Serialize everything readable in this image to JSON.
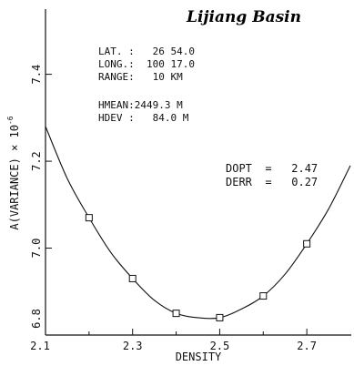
{
  "chart_data": {
    "type": "scatter",
    "title": "Lijiang Basin",
    "xlabel": "DENSITY",
    "ylabel": "A(VARIANCE) × 10",
    "ylabel_exponent": "-6",
    "xlim": [
      2.1,
      2.8
    ],
    "ylim": [
      6.8,
      7.55
    ],
    "x_ticks": [
      2.1,
      2.3,
      2.5,
      2.7
    ],
    "x_tick_labels": [
      "2.1",
      "2.3",
      "2.5",
      "2.7"
    ],
    "y_ticks": [
      6.8,
      7.0,
      7.2,
      7.4
    ],
    "y_tick_labels": [
      "6.8",
      "7.0",
      "7.2",
      "7.4"
    ],
    "series": [
      {
        "marker": "square",
        "x": [
          2.2,
          2.3,
          2.4,
          2.5,
          2.6,
          2.7
        ],
        "y": [
          7.07,
          6.93,
          6.85,
          6.84,
          6.89,
          7.01
        ]
      }
    ],
    "fit_curve": {
      "x": [
        2.1,
        2.15,
        2.2,
        2.25,
        2.3,
        2.35,
        2.4,
        2.45,
        2.5,
        2.55,
        2.6,
        2.65,
        2.7,
        2.75,
        2.8
      ],
      "y": [
        7.28,
        7.16,
        7.07,
        6.99,
        6.93,
        6.88,
        6.85,
        6.84,
        6.84,
        6.86,
        6.89,
        6.94,
        7.01,
        7.09,
        7.19
      ]
    },
    "annotations": {
      "lat": "LAT. :   26 54.0",
      "long": "LONG.:  100 17.0",
      "range": "RANGE:   10 KM",
      "hmean": "HMEAN:2449.3 M",
      "hdev": "HDEV :   84.0 M",
      "dopt": "DOPT  =   2.47",
      "derr": "DERR  =   0.27"
    }
  }
}
